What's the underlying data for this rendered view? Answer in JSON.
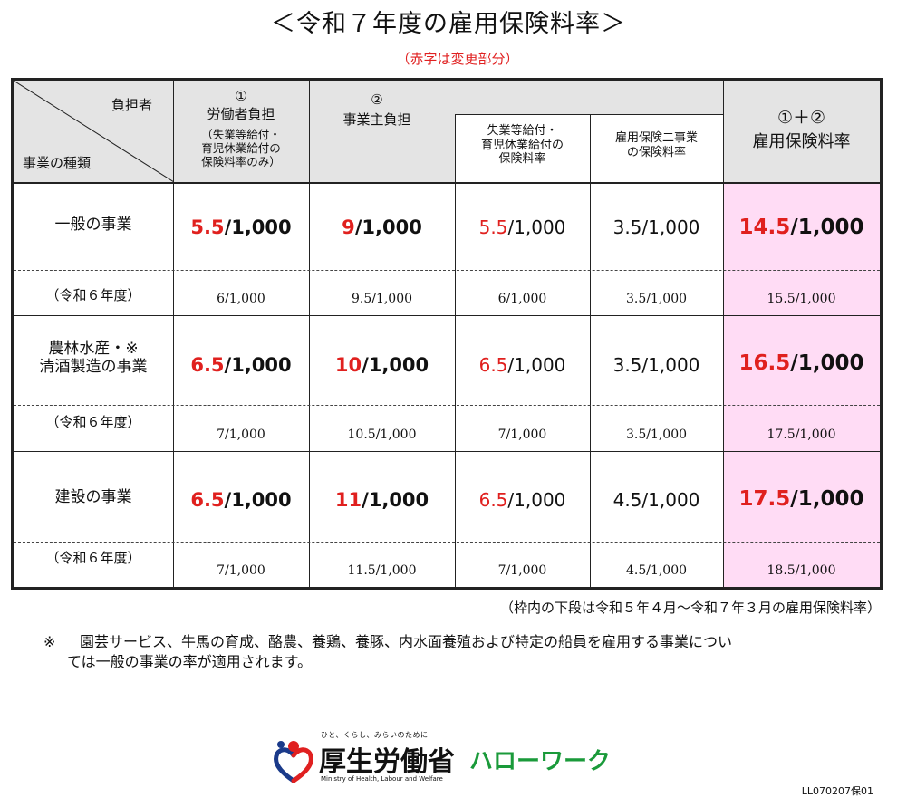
{
  "title": "＜令和７年度の雇用保険料率＞",
  "red_note": "（赤字は変更部分）",
  "header": {
    "corner_top": "負担者",
    "corner_bottom": "事業の種類",
    "col1_num": "①",
    "col1_title": "労働者負担",
    "col1_sub": [
      "（失業等給付・",
      "育児休業給付の",
      "保険料率のみ）"
    ],
    "col2_num": "②",
    "col2_title": "事業主負担",
    "col2a_sub": [
      "失業等給付・",
      "育児休業給付の",
      "保険料率"
    ],
    "col2b_sub": [
      "雇用保険二事業",
      "の保険料率"
    ],
    "col3_num": "①＋②",
    "col3_title": "雇用保険料率"
  },
  "rows": [
    {
      "label": [
        "一般の事業"
      ],
      "current": {
        "c1": {
          "red": "5.5",
          "rest": "/1,000"
        },
        "c2": {
          "red": "9",
          "rest": "/1,000"
        },
        "c2a": {
          "red": "5.5",
          "rest": "/1,000"
        },
        "c2b": "3.5/1,000",
        "c3": {
          "red": "14.5",
          "rest": "/1,000"
        }
      },
      "prev_label": "（令和６年度）",
      "prev": [
        "6/1,000",
        "9.5/1,000",
        "6/1,000",
        "3.5/1,000",
        "15.5/1,000"
      ]
    },
    {
      "label": [
        "農林水産・※",
        "清酒製造の事業"
      ],
      "current": {
        "c1": {
          "red": "6.5",
          "rest": "/1,000"
        },
        "c2": {
          "red": "10",
          "rest": "/1,000"
        },
        "c2a": {
          "red": "6.5",
          "rest": "/1,000"
        },
        "c2b": "3.5/1,000",
        "c3": {
          "red": "16.5",
          "rest": "/1,000"
        }
      },
      "prev_label": "（令和６年度）",
      "prev": [
        "7/1,000",
        "10.5/1,000",
        "7/1,000",
        "3.5/1,000",
        "17.5/1,000"
      ]
    },
    {
      "label": [
        "建設の事業"
      ],
      "current": {
        "c1": {
          "red": "6.5",
          "rest": "/1,000"
        },
        "c2": {
          "red": "11",
          "rest": "/1,000"
        },
        "c2a": {
          "red": "6.5",
          "rest": "/1,000"
        },
        "c2b": "4.5/1,000",
        "c3": {
          "red": "17.5",
          "rest": "/1,000"
        }
      },
      "prev_label": "（令和６年度）",
      "prev": [
        "7/1,000",
        "11.5/1,000",
        "7/1,000",
        "4.5/1,000",
        "18.5/1,000"
      ]
    }
  ],
  "footnote_range": "（枠内の下段は令和５年４月～令和７年３月の雇用保険料率）",
  "footnote_mark": "※",
  "footnote_text_1": "園芸サービス、牛馬の育成、酪農、養鶏、養豚、内水面養殖および特定の船員を雇用する事業につい",
  "footnote_text_2": "ては一般の事業の率が適用されます。",
  "logo": {
    "tagline": "ひと、くらし、みらいのために",
    "ministry_jp": "厚生労働省",
    "ministry_en": "Ministry of Health, Labour and Welfare",
    "hellowork": "ハローワーク"
  },
  "doc_code": "LL070207保01",
  "colors": {
    "red": "#e0201e",
    "header_bg": "#e4e4e4",
    "pink_bg": "#ffdcf5",
    "green": "#1a9a3a",
    "logo_blue": "#1a3a8a"
  }
}
